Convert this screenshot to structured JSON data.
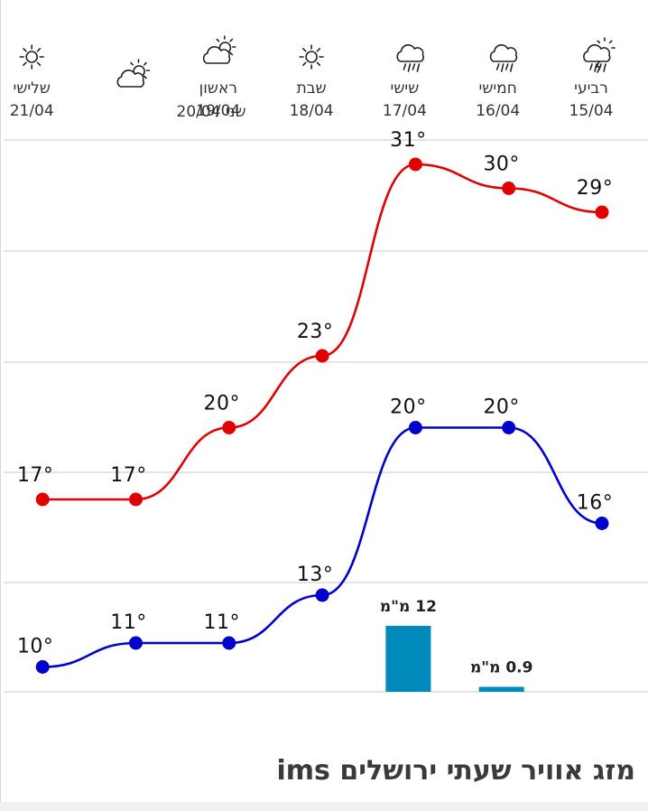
{
  "chart_data": {
    "type": "line",
    "days": [
      {
        "name": "רביעי",
        "date": "15/04",
        "icon": "rain-thunder-icon",
        "high": 29,
        "low": 16,
        "precip": null
      },
      {
        "name": "חמישי",
        "date": "16/04",
        "icon": "rain-icon",
        "high": 30,
        "low": 20,
        "precip": "0.9 מ\"מ",
        "precip_value": 0.9
      },
      {
        "name": "שישי",
        "date": "17/04",
        "icon": "rain-icon",
        "high": 31,
        "low": 20,
        "precip": "12 מ\"מ",
        "precip_value": 12
      },
      {
        "name": "שבת",
        "date": "18/04",
        "icon": "sun-icon",
        "high": 23,
        "low": 13,
        "precip": null
      },
      {
        "name": "ראשון",
        "date": "19/04",
        "icon": "partly-cloudy-icon",
        "high": 20,
        "low": 11,
        "precip": null
      },
      {
        "name": "שני",
        "date": "20/04",
        "icon": "partly-cloudy-icon",
        "high": 17,
        "low": 11,
        "precip": null
      },
      {
        "name": "שלישי",
        "date": "21/04",
        "icon": "sun-icon",
        "high": 17,
        "low": 10,
        "precip": null
      }
    ],
    "series": [
      {
        "key": "high",
        "color": "#e00000"
      },
      {
        "key": "low",
        "color": "#0000cc"
      }
    ],
    "precip_bar_color": "#0089bb",
    "grid": true,
    "x_direction": "right-to-left"
  },
  "footer": {
    "title": "מזג אוויר שעתי ירושלים ims"
  }
}
